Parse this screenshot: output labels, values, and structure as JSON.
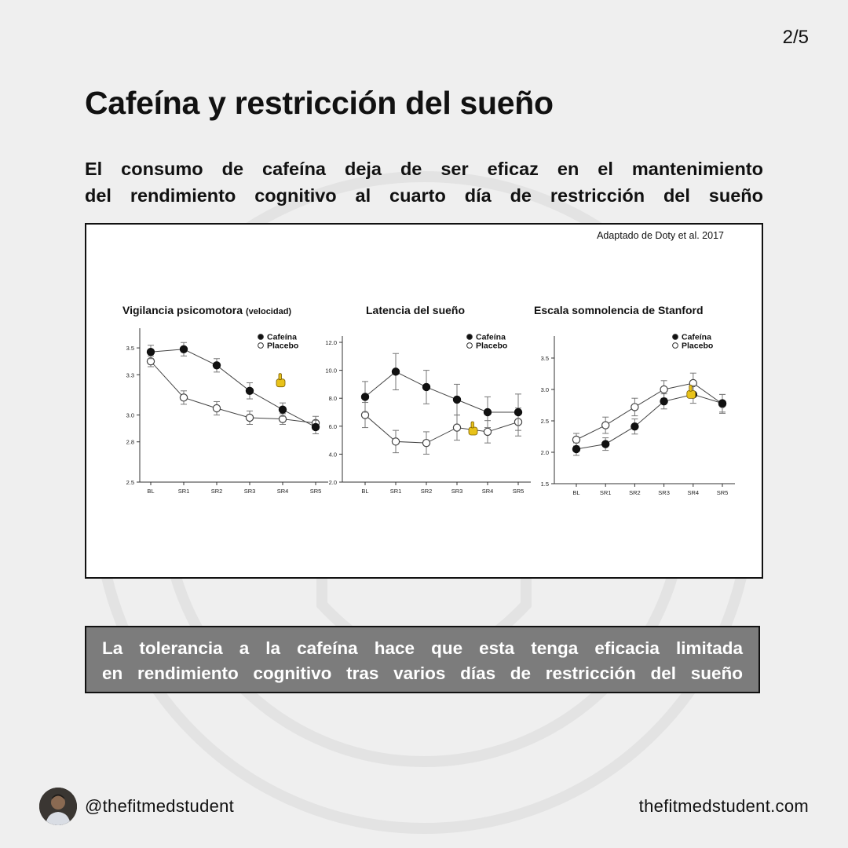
{
  "page_indicator": "2/5",
  "title": "Cafeína y restricción del sueño",
  "subtitle_lines": [
    "El consumo de cafeína deja de ser eficaz en el mantenimiento",
    "del rendimiento cognitivo al cuarto día de restricción del sueño"
  ],
  "figure": {
    "source": "Adaptado de Doty et al. 2017"
  },
  "conclusion_lines": [
    "La tolerancia a la cafeína hace que esta tenga eficacia limitada",
    "en rendimiento cognitivo tras varios días de restricción del sueño"
  ],
  "footer": {
    "handle": "@thefitmedstudent",
    "website": "thefitmedstudent.com"
  },
  "colors": {
    "background": "#efefef",
    "conclusion_bg": "#7c7c7c",
    "highlight_hand": "#e8c21a"
  },
  "icons": {
    "highlight": "pointing-hand-icon"
  },
  "chart_data": [
    {
      "type": "line",
      "title": "Vigilancia psicomotora",
      "title_suffix": "(velocidad)",
      "categories": [
        "BL",
        "SR1",
        "SR2",
        "SR3",
        "SR4",
        "SR5"
      ],
      "yticks": [
        "2.5",
        "2.8",
        "3.0",
        "3.3",
        "3.5"
      ],
      "ylim": [
        2.5,
        3.6
      ],
      "legend_position": "top-right",
      "highlight_category": "SR4",
      "series": [
        {
          "name": "Cafeína",
          "marker": "filled",
          "values": [
            3.47,
            3.49,
            3.37,
            3.18,
            3.04,
            2.91
          ],
          "errors": [
            0.05,
            0.05,
            0.05,
            0.06,
            0.05,
            0.05
          ]
        },
        {
          "name": "Placebo",
          "marker": "open",
          "values": [
            3.4,
            3.13,
            3.05,
            2.98,
            2.97,
            2.94
          ],
          "errors": [
            0.04,
            0.05,
            0.05,
            0.05,
            0.04,
            0.05
          ]
        }
      ]
    },
    {
      "type": "line",
      "title": "Latencia del sueño",
      "title_suffix": "",
      "categories": [
        "BL",
        "SR1",
        "SR2",
        "SR3",
        "SR4",
        "SR5"
      ],
      "yticks": [
        "2.0",
        "4.0",
        "6.0",
        "8.0",
        "10.0",
        "12.0"
      ],
      "ylim": [
        2.0,
        12.0
      ],
      "legend_position": "top-right",
      "highlight_category": "SR4",
      "series": [
        {
          "name": "Cafeína",
          "marker": "filled",
          "values": [
            8.1,
            9.9,
            8.8,
            7.9,
            7.0,
            7.0
          ],
          "errors": [
            1.1,
            1.3,
            1.2,
            1.1,
            1.1,
            1.3
          ]
        },
        {
          "name": "Placebo",
          "marker": "open",
          "values": [
            6.8,
            4.9,
            4.8,
            5.9,
            5.6,
            6.3
          ],
          "errors": [
            0.9,
            0.8,
            0.8,
            0.9,
            0.8,
            1.0
          ]
        }
      ]
    },
    {
      "type": "line",
      "title": "Escala somnolencia de Stanford",
      "title_suffix": "",
      "categories": [
        "BL",
        "SR1",
        "SR2",
        "SR3",
        "SR4",
        "SR5"
      ],
      "yticks": [
        "1.5",
        "2.0",
        "2.5",
        "3.0",
        "3.5"
      ],
      "ylim": [
        1.5,
        3.75
      ],
      "legend_position": "top-right",
      "highlight_category": "SR4",
      "series": [
        {
          "name": "Cafeína",
          "marker": "filled",
          "values": [
            2.05,
            2.13,
            2.41,
            2.81,
            2.92,
            2.78
          ],
          "errors": [
            0.1,
            0.1,
            0.12,
            0.12,
            0.14,
            0.14
          ]
        },
        {
          "name": "Placebo",
          "marker": "open",
          "values": [
            2.2,
            2.43,
            2.72,
            3.0,
            3.1,
            2.77
          ],
          "errors": [
            0.1,
            0.13,
            0.14,
            0.14,
            0.16,
            0.15
          ]
        }
      ]
    }
  ]
}
